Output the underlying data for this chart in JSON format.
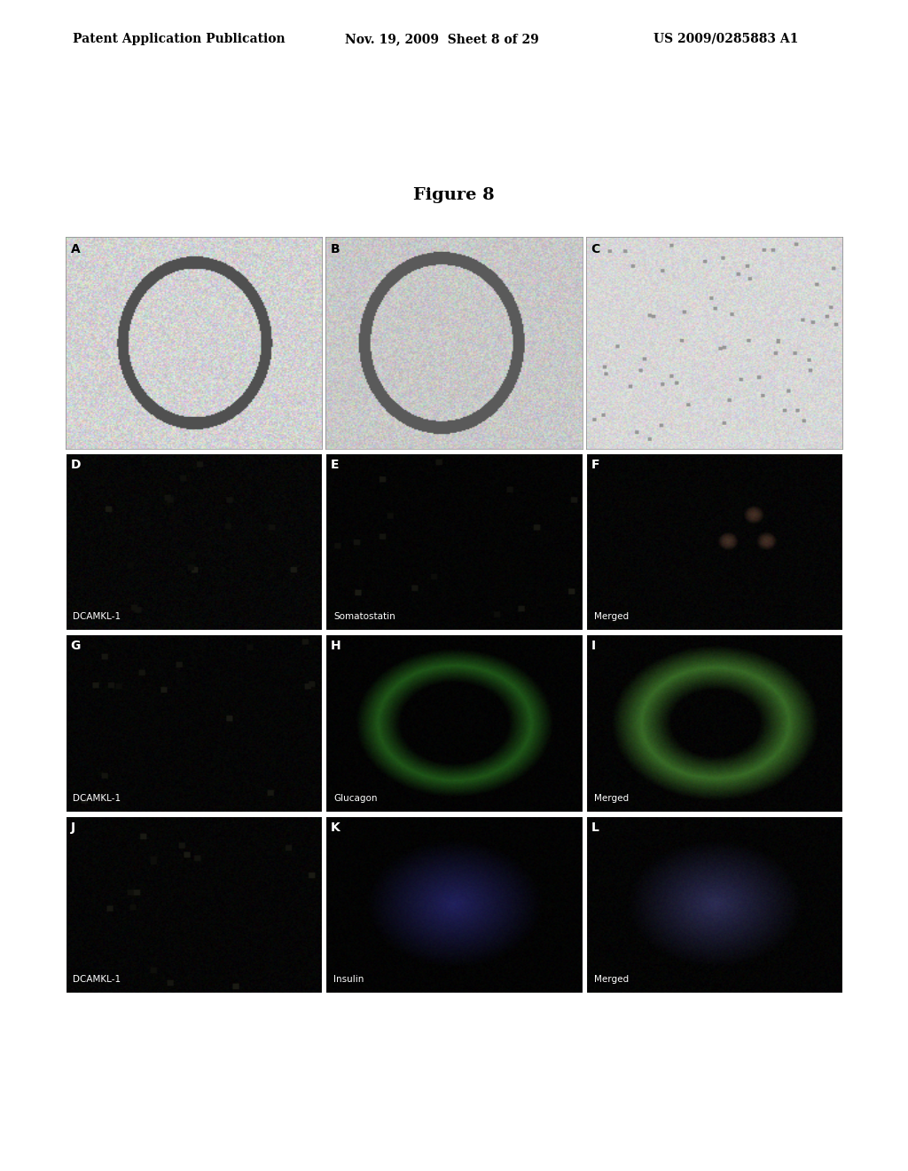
{
  "page_header_left": "Patent Application Publication",
  "page_header_mid": "Nov. 19, 2009  Sheet 8 of 29",
  "page_header_right": "US 2009/0285883 A1",
  "figure_title": "Figure 8",
  "background_color": "#ffffff",
  "panel_labels": [
    "A",
    "B",
    "C",
    "D",
    "E",
    "F",
    "G",
    "H",
    "I",
    "J",
    "K",
    "L"
  ],
  "panel_sublabels": [
    [
      "",
      "",
      ""
    ],
    [
      "DCAMKL-1",
      "Somatostatin",
      "Merged"
    ],
    [
      "DCAMKL-1",
      "Glucagon",
      "Merged"
    ],
    [
      "DCAMKL-1",
      "Insulin",
      "Merged"
    ]
  ],
  "row0_bg": "#c8c8c8",
  "row1_bg": "#101010",
  "row2_bg": "#101010",
  "row3_bg": "#101010"
}
